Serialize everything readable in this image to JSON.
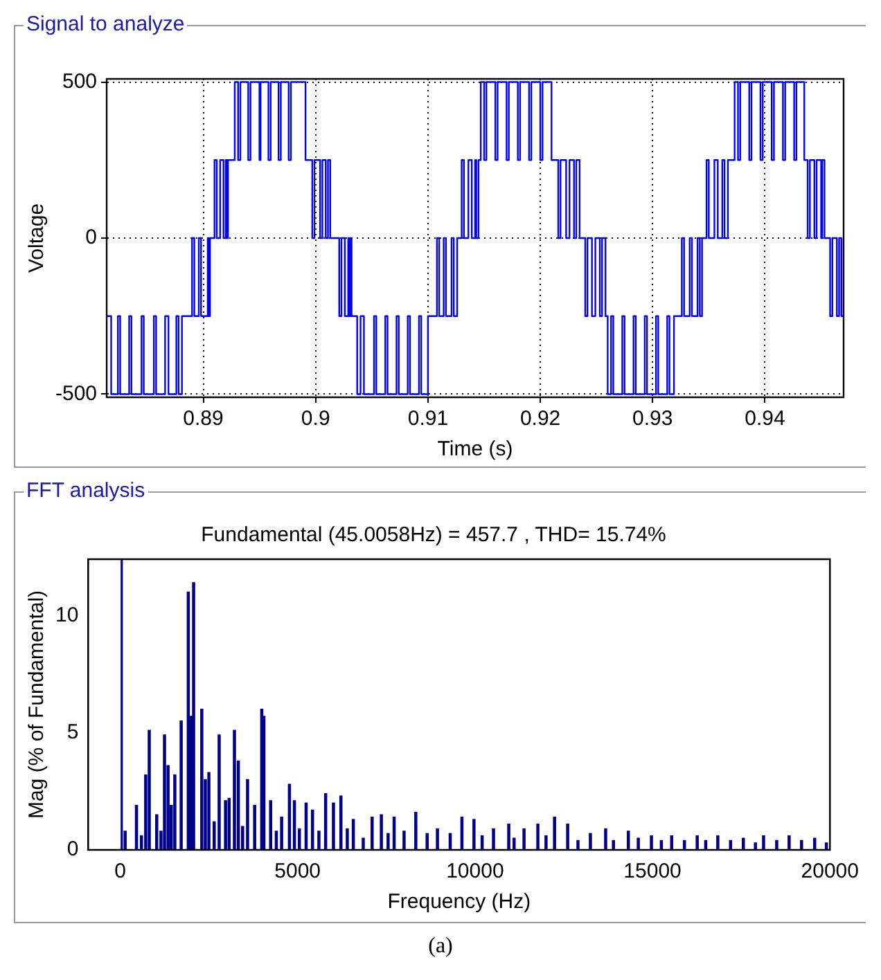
{
  "chart_data": [
    {
      "type": "step",
      "title": "Signal to analyze",
      "xlabel": "Time (s)",
      "ylabel": "Voltage",
      "color": "#0000ff",
      "marker": "none",
      "grid": true,
      "xlim": [
        0.8814,
        0.947
      ],
      "xticks": [
        0.89,
        0.9,
        0.91,
        0.92,
        0.93,
        0.94
      ],
      "ylim": [
        -510,
        510
      ],
      "yticks": [
        -500,
        0,
        500
      ],
      "x": [
        0.8814,
        0.8818,
        0.8824,
        0.8826,
        0.8834,
        0.8836,
        0.8845,
        0.8847,
        0.8856,
        0.8858,
        0.8866,
        0.8869,
        0.8876,
        0.8878,
        0.8881,
        0.889,
        0.8892,
        0.8896,
        0.8898,
        0.8904,
        0.8905,
        0.8906,
        0.891,
        0.8912,
        0.8915,
        0.8918,
        0.892,
        0.8921,
        0.8922,
        0.8928,
        0.8931,
        0.8933,
        0.894,
        0.8942,
        0.895,
        0.8951,
        0.8958,
        0.896,
        0.8967,
        0.8969,
        0.8976,
        0.8978,
        0.8991,
        0.8997,
        0.8999,
        0.9004,
        0.9006,
        0.9009,
        0.9011,
        0.9013,
        0.9021,
        0.9023,
        0.9026,
        0.9029,
        0.903,
        0.9031,
        0.9032,
        0.9037,
        0.904,
        0.9043,
        0.9052,
        0.9054,
        0.9062,
        0.9064,
        0.9072,
        0.9074,
        0.9082,
        0.9084,
        0.9092,
        0.9094,
        0.91,
        0.9108,
        0.911,
        0.9114,
        0.9116,
        0.9121,
        0.9123,
        0.9126,
        0.913,
        0.9132,
        0.9136,
        0.9139,
        0.9142,
        0.9143,
        0.9145,
        0.9147,
        0.915,
        0.9152,
        0.916,
        0.9162,
        0.917,
        0.9172,
        0.918,
        0.9182,
        0.919,
        0.9192,
        0.92,
        0.9202,
        0.921,
        0.9216,
        0.9218,
        0.9223,
        0.9226,
        0.923,
        0.9232,
        0.9235,
        0.924,
        0.9242,
        0.9246,
        0.9249,
        0.9253,
        0.9255,
        0.9258,
        0.926,
        0.9263,
        0.9265,
        0.9273,
        0.9275,
        0.9283,
        0.9285,
        0.9293,
        0.9295,
        0.9303,
        0.9305,
        0.9313,
        0.9315,
        0.9319,
        0.9326,
        0.9328,
        0.9333,
        0.9335,
        0.934,
        0.9342,
        0.9344,
        0.9348,
        0.935,
        0.9355,
        0.9358,
        0.9362,
        0.9364,
        0.9367,
        0.9373,
        0.9376,
        0.9378,
        0.9386,
        0.9388,
        0.9396,
        0.9398,
        0.9406,
        0.9408,
        0.9416,
        0.9418,
        0.9426,
        0.9428,
        0.9435,
        0.9438,
        0.944,
        0.9444,
        0.9446,
        0.945,
        0.9451,
        0.9453,
        0.9458,
        0.946,
        0.9464,
        0.9466,
        0.9468,
        0.947
      ],
      "values": [
        -250,
        -500,
        -250,
        -500,
        -250,
        -500,
        -250,
        -500,
        -250,
        -500,
        -250,
        -500,
        -250,
        -500,
        -250,
        0,
        -250,
        0,
        -250,
        0,
        -250,
        0,
        250,
        0,
        250,
        0,
        250,
        0,
        250,
        500,
        250,
        500,
        250,
        500,
        250,
        500,
        250,
        500,
        250,
        500,
        250,
        500,
        250,
        0,
        250,
        0,
        250,
        0,
        250,
        0,
        -250,
        0,
        -250,
        0,
        -250,
        0,
        -250,
        -500,
        -250,
        -500,
        -250,
        -500,
        -250,
        -500,
        -250,
        -500,
        -250,
        -500,
        -250,
        -500,
        -250,
        0,
        -250,
        0,
        -250,
        0,
        -250,
        0,
        250,
        0,
        250,
        0,
        250,
        0,
        250,
        500,
        250,
        500,
        250,
        500,
        250,
        500,
        250,
        500,
        250,
        500,
        250,
        500,
        250,
        0,
        250,
        0,
        250,
        0,
        250,
        0,
        -250,
        0,
        -250,
        0,
        -250,
        0,
        -250,
        -500,
        -250,
        -500,
        -250,
        -500,
        -250,
        -500,
        -250,
        -500,
        -250,
        -500,
        -250,
        -500,
        -250,
        0,
        -250,
        0,
        -250,
        0,
        -250,
        0,
        250,
        0,
        250,
        0,
        250,
        0,
        250,
        500,
        250,
        500,
        250,
        500,
        250,
        500,
        250,
        500,
        250,
        500,
        250,
        500,
        250,
        0,
        250,
        0,
        250,
        0,
        250,
        0,
        -250,
        0,
        -250,
        0,
        -250,
        0
      ]
    },
    {
      "type": "bar",
      "title": "FFT analysis",
      "subtitle": "Fundamental (45.0058Hz) = 457.7 , THD= 15.74%",
      "xlabel": "Frequency (Hz)",
      "ylabel": "Mag (% of Fundamental)",
      "color": "#00008b",
      "grid": false,
      "xlim": [
        -900,
        20000
      ],
      "xticks": [
        0,
        5000,
        10000,
        15000,
        20000
      ],
      "ylim": [
        0,
        12.4
      ],
      "yticks": [
        0,
        5,
        10
      ],
      "annotations": [
        "(a)"
      ],
      "ref_lines": [
        {
          "axis": "x",
          "value": 45,
          "color": "#00008b"
        }
      ],
      "x": [
        140,
        460,
        600,
        720,
        820,
        1030,
        1150,
        1250,
        1350,
        1440,
        1540,
        1720,
        1920,
        2000,
        2070,
        2300,
        2400,
        2500,
        2650,
        2790,
        2970,
        3070,
        3220,
        3330,
        3450,
        3590,
        3790,
        3990,
        4050,
        4240,
        4400,
        4550,
        4770,
        4910,
        5050,
        5240,
        5420,
        5600,
        5790,
        6010,
        6220,
        6400,
        6570,
        6850,
        7100,
        7360,
        7550,
        7720,
        8000,
        8330,
        8650,
        8940,
        9300,
        9630,
        9970,
        10200,
        10520,
        10950,
        11100,
        11380,
        11770,
        12000,
        12240,
        12610,
        12900,
        13250,
        13680,
        13900,
        14320,
        14600,
        14970,
        15250,
        15540,
        15900,
        16260,
        16500,
        16840,
        17200,
        17560,
        17900,
        18130,
        18500,
        18850,
        19200,
        19570,
        19900
      ],
      "values": [
        0.8,
        1.9,
        0.6,
        3.2,
        5.1,
        1.5,
        0.8,
        4.9,
        3.6,
        1.9,
        3.2,
        5.5,
        11.0,
        5.7,
        11.4,
        6.0,
        3.0,
        3.3,
        1.2,
        4.9,
        2.1,
        2.2,
        5.1,
        3.8,
        1.0,
        3.0,
        1.9,
        6.0,
        5.7,
        2.1,
        0.8,
        1.4,
        2.8,
        2.1,
        0.9,
        2.0,
        1.7,
        0.8,
        2.4,
        2.0,
        2.3,
        0.9,
        1.3,
        0.5,
        1.4,
        1.5,
        0.7,
        1.4,
        0.8,
        1.6,
        0.7,
        0.9,
        0.7,
        1.4,
        1.3,
        0.6,
        0.9,
        1.1,
        0.5,
        0.9,
        1.1,
        0.6,
        1.4,
        1.1,
        0.4,
        0.7,
        0.9,
        0.4,
        0.8,
        0.5,
        0.6,
        0.4,
        0.6,
        0.4,
        0.6,
        0.4,
        0.6,
        0.4,
        0.5,
        0.3,
        0.6,
        0.4,
        0.6,
        0.4,
        0.5,
        0.3
      ]
    }
  ]
}
